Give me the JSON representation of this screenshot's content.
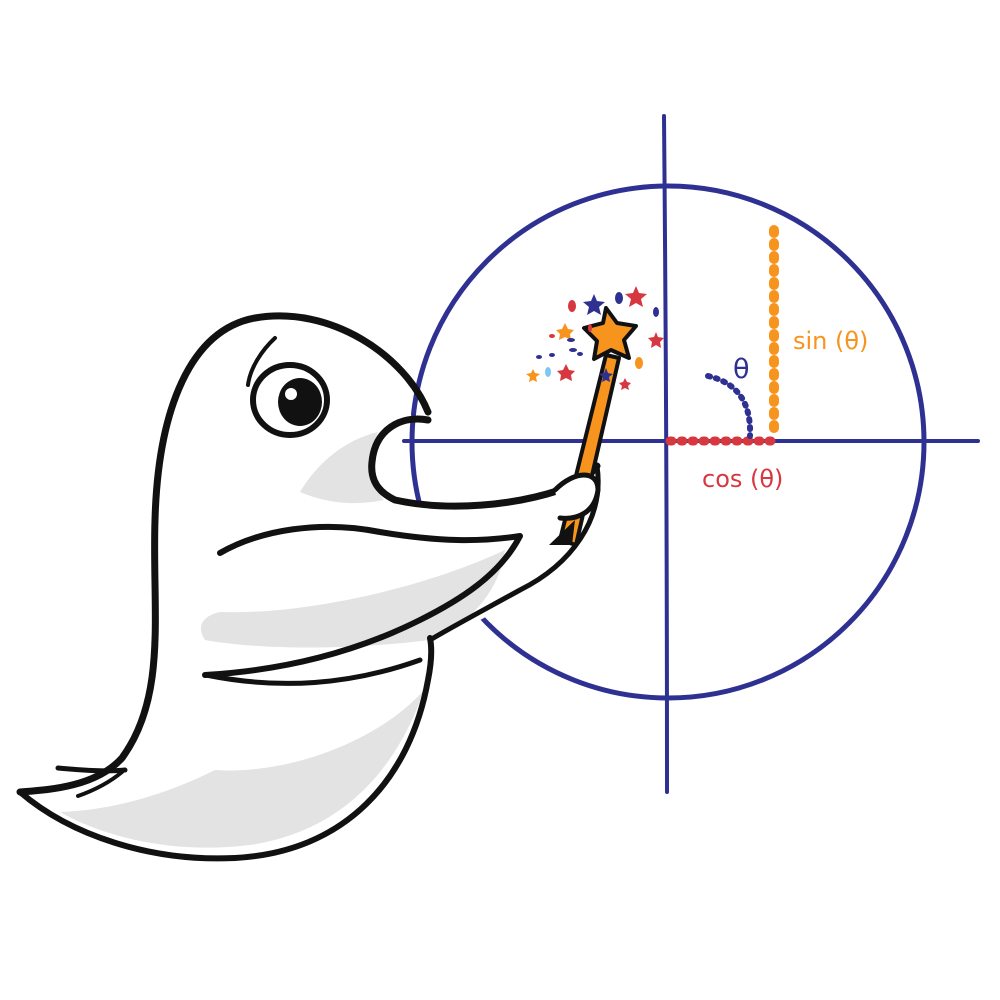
{
  "labels": {
    "theta": "θ",
    "sin": "sin (θ)",
    "cos": "cos (θ)"
  },
  "colors": {
    "circle": "#2E3192",
    "axes": "#2E3192",
    "theta": "#2E3192",
    "sin": "#F7941D",
    "cos": "#D7373F",
    "wand": "#F7941D",
    "bird_outline": "#111111",
    "bird_shade": "#E3E3E3"
  },
  "icons": {
    "character": "ghost-bird-icon",
    "wand": "magic-wand-icon",
    "sparkles": "sparkles-icon"
  }
}
